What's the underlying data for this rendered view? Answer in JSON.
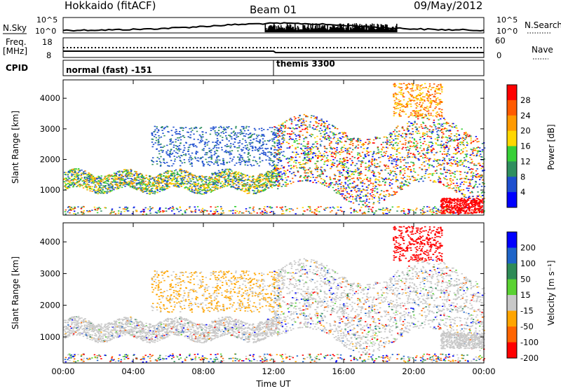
{
  "header": {
    "title": "Hokkaido (fitACF)",
    "beam": "Beam 01",
    "date": "09/May/2012"
  },
  "summary_panels": {
    "nsky_label": "N.Sky",
    "nsky_ticks": [
      "10^5",
      "10^0"
    ],
    "nsearch_label": "N.Search",
    "nsearch_ticks": [
      "10^5",
      "10^0"
    ],
    "freq_label_1": "Freq.",
    "freq_label_2": "[MHz]",
    "freq_ticks": [
      "18",
      "8"
    ],
    "nave_label": "Nave",
    "nave_ticks": [
      "60",
      "0"
    ],
    "cpid_label": "CPID",
    "cpid_modes": [
      "normal (fast) -151",
      "themis 3300"
    ]
  },
  "chart_data": [
    {
      "type": "heatmap",
      "title": "",
      "xlabel": "",
      "ylabel": "Slant Range [km]",
      "x_ticks": [
        "00:00",
        "04:00",
        "08:00",
        "12:00",
        "16:00",
        "20:00",
        "00:00"
      ],
      "y_ticks": [
        "1000",
        "2000",
        "3000",
        "4000"
      ],
      "ylim": [
        180,
        4600
      ],
      "colorbar": {
        "label": "Power [dB]",
        "ticks": [
          "28",
          "24",
          "20",
          "16",
          "12",
          "8",
          "4"
        ],
        "colors": [
          "#ff0000",
          "#ff5a00",
          "#ff9a00",
          "#ffd700",
          "#37d037",
          "#2f8f5f",
          "#1e4fcf",
          "#0000ff"
        ]
      }
    },
    {
      "type": "heatmap",
      "title": "",
      "xlabel": "Time UT",
      "ylabel": "Slant Range [km]",
      "x_ticks": [
        "00:00",
        "04:00",
        "08:00",
        "12:00",
        "16:00",
        "20:00",
        "00:00"
      ],
      "y_ticks": [
        "1000",
        "2000",
        "3000",
        "4000"
      ],
      "ylim": [
        180,
        4600
      ],
      "colorbar": {
        "label": "Velocity [m s⁻¹]",
        "ticks": [
          "200",
          "100",
          "50",
          "15",
          "-15",
          "-50",
          "-100",
          "-200"
        ],
        "colors": [
          "#0000ff",
          "#1e64c8",
          "#2e8b57",
          "#5ad232",
          "#c8c8c8",
          "#ffa500",
          "#ff6400",
          "#ff0000"
        ]
      }
    }
  ]
}
